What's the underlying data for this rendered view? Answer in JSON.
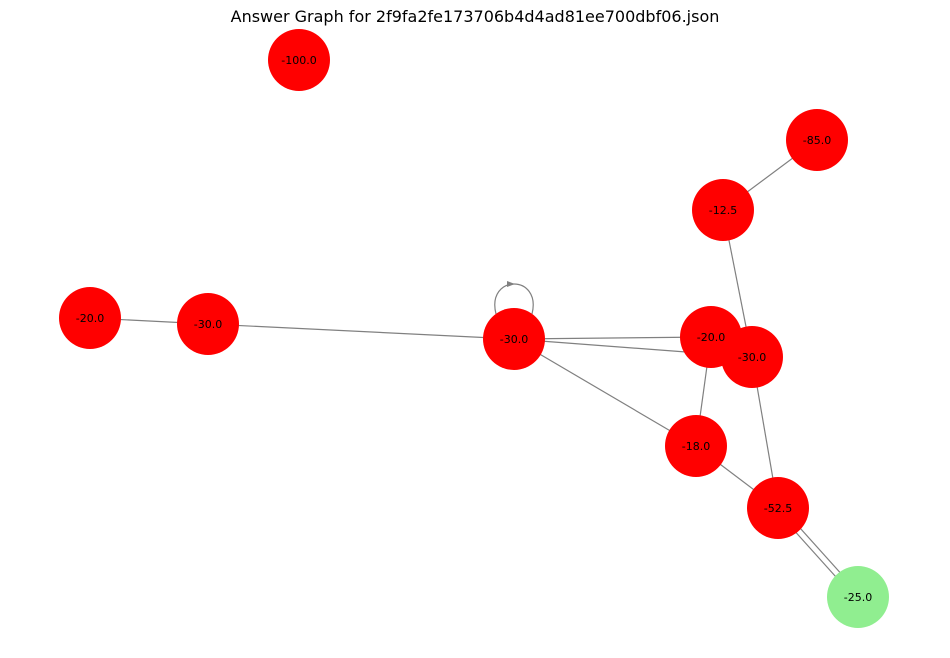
{
  "title": "Answer Graph for 2f9fa2fe173706b4d4ad81ee700dbf06.json",
  "colors": {
    "node_default": "#ff0000",
    "node_highlight": "#90ee90",
    "edge": "#808080"
  },
  "nodes": [
    {
      "id": "n1",
      "label": "-100.0",
      "color": "red"
    },
    {
      "id": "n2",
      "label": "-85.0",
      "color": "red"
    },
    {
      "id": "n3",
      "label": "-12.5",
      "color": "red"
    },
    {
      "id": "n4",
      "label": "-20.0",
      "color": "red"
    },
    {
      "id": "n5",
      "label": "-30.0",
      "color": "red"
    },
    {
      "id": "n6",
      "label": "-30.0",
      "color": "red"
    },
    {
      "id": "n7",
      "label": "-20.0",
      "color": "red"
    },
    {
      "id": "n8",
      "label": "-30.0",
      "color": "red"
    },
    {
      "id": "n9",
      "label": "-18.0",
      "color": "red"
    },
    {
      "id": "n10",
      "label": "-52.5",
      "color": "red"
    },
    {
      "id": "n11",
      "label": "-25.0",
      "color": "green"
    }
  ],
  "edges": [
    {
      "from": "n2",
      "to": "n3"
    },
    {
      "from": "n3",
      "to": "n8"
    },
    {
      "from": "n4",
      "to": "n5"
    },
    {
      "from": "n5",
      "to": "n6"
    },
    {
      "from": "n6",
      "to": "n6"
    },
    {
      "from": "n6",
      "to": "n7"
    },
    {
      "from": "n6",
      "to": "n8"
    },
    {
      "from": "n6",
      "to": "n9"
    },
    {
      "from": "n7",
      "to": "n9"
    },
    {
      "from": "n8",
      "to": "n10"
    },
    {
      "from": "n9",
      "to": "n10"
    },
    {
      "from": "n10",
      "to": "n11"
    },
    {
      "from": "n10",
      "to": "n11"
    }
  ]
}
